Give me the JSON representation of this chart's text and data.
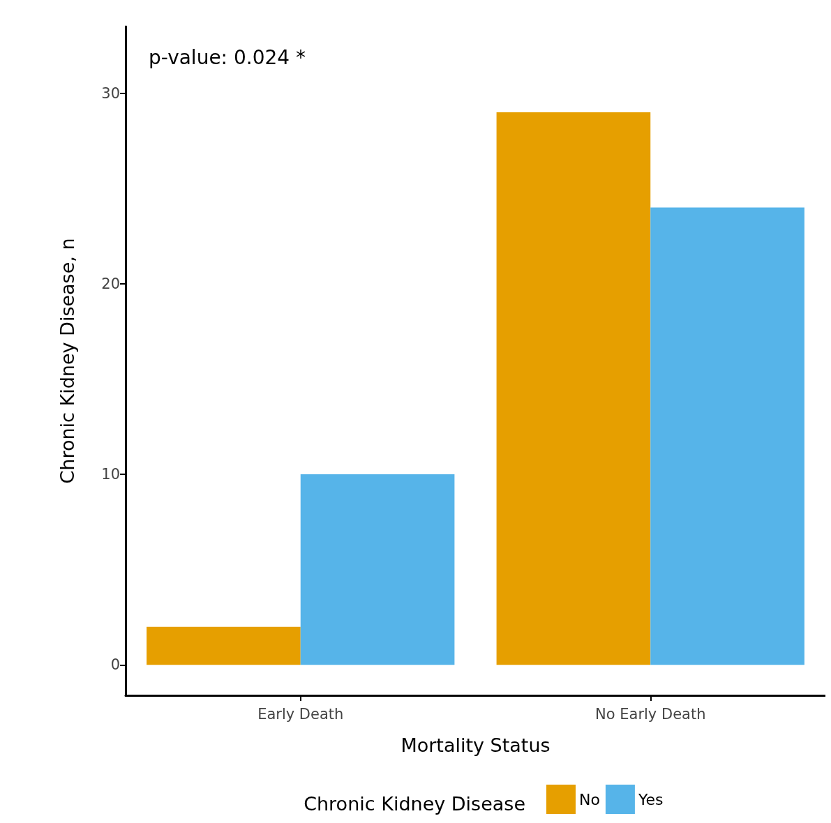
{
  "chart_data": {
    "type": "bar",
    "xlabel": "Mortality Status",
    "ylabel": "Chronic Kidney Disease, n",
    "legend_title": "Chronic Kidney Disease",
    "categories": [
      "Early Death",
      "No Early Death"
    ],
    "series": [
      {
        "name": "No",
        "color": "#e69f00",
        "values": [
          2,
          29
        ]
      },
      {
        "name": "Yes",
        "color": "#56b4e9",
        "values": [
          10,
          24
        ]
      }
    ],
    "ylim": [
      -1.6,
      33.5
    ],
    "yticks": [
      0,
      10,
      20,
      30
    ],
    "grid": false,
    "legend": "bottom",
    "annotations": [
      "p-value: 0.024 *"
    ]
  }
}
